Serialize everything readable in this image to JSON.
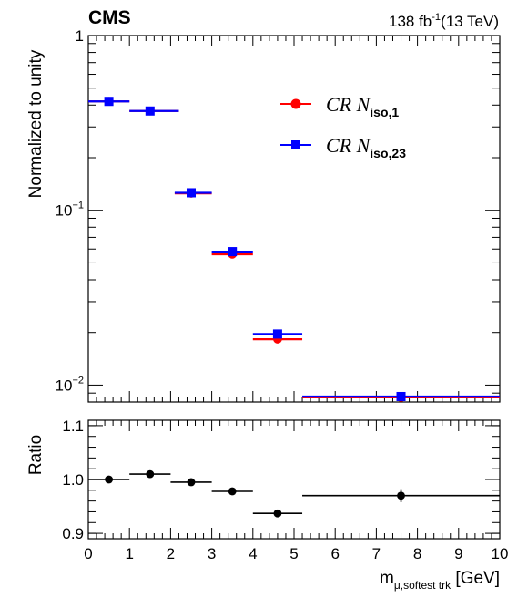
{
  "header": {
    "experiment": "CMS",
    "lumi_value": "138 fb",
    "lumi_exponent": "-1",
    "lumi_energy": "(13 TeV)"
  },
  "chart_data": [
    {
      "type": "scatter",
      "panel": "main",
      "ylabel": "Normalized to unity",
      "yscale": "log",
      "ylim": [
        0.008,
        1
      ],
      "xlim": [
        0,
        10
      ],
      "ytick_labels": [
        {
          "value": 1,
          "base": "1",
          "exp": ""
        },
        {
          "value": 0.1,
          "base": "10",
          "exp": "−1"
        },
        {
          "value": 0.01,
          "base": "10",
          "exp": "−2"
        }
      ],
      "legend_position": "top-right",
      "series": [
        {
          "name": "CR N_iso,1",
          "legend_main": "CR  N",
          "legend_sub": "iso,1",
          "color": "#ff0000",
          "marker": "circle",
          "points": [
            {
              "x": 0.5,
              "xlo": 0,
              "xhi": 1,
              "y": 0.42
            },
            {
              "x": 1.5,
              "xlo": 1,
              "xhi": 2.2,
              "y": 0.37
            },
            {
              "x": 2.5,
              "xlo": 2.1,
              "xhi": 3,
              "y": 0.125
            },
            {
              "x": 3.5,
              "xlo": 3,
              "xhi": 4,
              "y": 0.056
            },
            {
              "x": 4.6,
              "xlo": 4,
              "xhi": 5.2,
              "y": 0.0183
            },
            {
              "x": 7.6,
              "xlo": 5.2,
              "xhi": 10,
              "y": 0.0085
            }
          ]
        },
        {
          "name": "CR N_iso,23",
          "legend_main": "CR  N",
          "legend_sub": "iso,23",
          "color": "#0000ff",
          "marker": "square",
          "points": [
            {
              "x": 0.5,
              "xlo": 0,
              "xhi": 1,
              "y": 0.42
            },
            {
              "x": 1.5,
              "xlo": 1,
              "xhi": 2.2,
              "y": 0.37
            },
            {
              "x": 2.5,
              "xlo": 2.1,
              "xhi": 3,
              "y": 0.126
            },
            {
              "x": 3.5,
              "xlo": 3,
              "xhi": 4,
              "y": 0.058
            },
            {
              "x": 4.6,
              "xlo": 4,
              "xhi": 5.2,
              "y": 0.0196
            },
            {
              "x": 7.6,
              "xlo": 5.2,
              "xhi": 10,
              "y": 0.0086
            }
          ]
        }
      ]
    },
    {
      "type": "scatter",
      "panel": "ratio",
      "ylabel": "Ratio",
      "xlabel_main": "m",
      "xlabel_sub": "μ,softest trk",
      "xlabel_unit": " [GeV]",
      "xlim": [
        0,
        10
      ],
      "ylim": [
        0.89,
        1.11
      ],
      "xtick_labels": [
        "0",
        "1",
        "2",
        "3",
        "4",
        "5",
        "6",
        "7",
        "8",
        "9",
        "10"
      ],
      "ytick_labels": [
        "0.9",
        "1.0",
        "1.1"
      ],
      "series": [
        {
          "color": "#000000",
          "marker": "circle",
          "points": [
            {
              "x": 0.5,
              "xlo": 0,
              "xhi": 1,
              "y": 1.0,
              "yerr": 0.002
            },
            {
              "x": 1.5,
              "xlo": 1,
              "xhi": 2,
              "y": 1.01,
              "yerr": 0.003
            },
            {
              "x": 2.5,
              "xlo": 2,
              "xhi": 3,
              "y": 0.995,
              "yerr": 0.003
            },
            {
              "x": 3.5,
              "xlo": 3,
              "xhi": 4,
              "y": 0.978,
              "yerr": 0.004
            },
            {
              "x": 4.6,
              "xlo": 4,
              "xhi": 5.2,
              "y": 0.937,
              "yerr": 0.007
            },
            {
              "x": 7.6,
              "xlo": 5.2,
              "xhi": 10,
              "y": 0.97,
              "yerr": 0.012
            }
          ]
        }
      ]
    }
  ]
}
